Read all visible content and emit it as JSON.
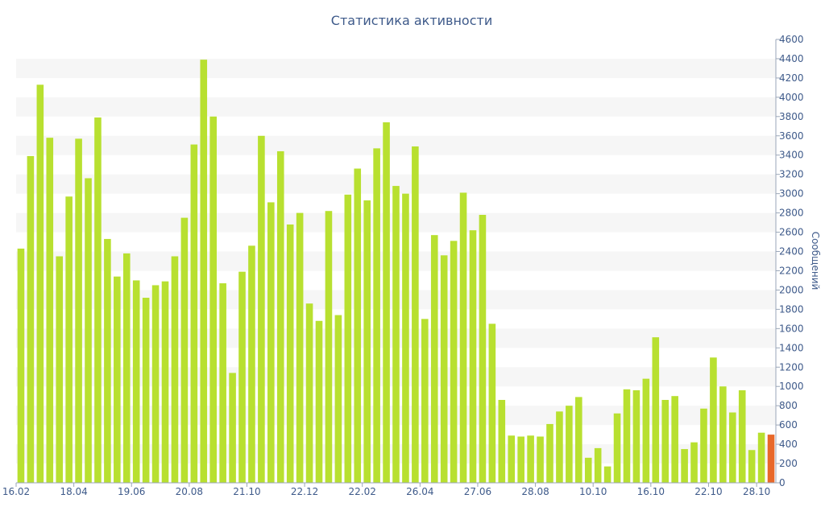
{
  "chart_data": {
    "type": "bar",
    "title": "Статистика активности",
    "ylabel": "Сообщений",
    "ylim": [
      0,
      4600
    ],
    "y_ticks": [
      0,
      200,
      400,
      600,
      800,
      1000,
      1200,
      1400,
      1600,
      1800,
      2000,
      2200,
      2400,
      2600,
      2800,
      3000,
      3200,
      3400,
      3600,
      3800,
      4000,
      4200,
      4400,
      4600
    ],
    "x_tick_labels": [
      {
        "index": 0,
        "label": "16.02"
      },
      {
        "index": 6,
        "label": "18.04"
      },
      {
        "index": 12,
        "label": "19.06"
      },
      {
        "index": 18,
        "label": "20.08"
      },
      {
        "index": 24,
        "label": "21.10"
      },
      {
        "index": 30,
        "label": "22.12"
      },
      {
        "index": 36,
        "label": "22.02"
      },
      {
        "index": 42,
        "label": "26.04"
      },
      {
        "index": 48,
        "label": "27.06"
      },
      {
        "index": 54,
        "label": "28.08"
      },
      {
        "index": 60,
        "label": "10.10"
      },
      {
        "index": 66,
        "label": "16.10"
      },
      {
        "index": 72,
        "label": "22.10"
      },
      {
        "index": 77,
        "label": "28.10"
      }
    ],
    "values": [
      2430,
      3390,
      4130,
      3580,
      2350,
      2970,
      3570,
      3160,
      3790,
      2530,
      2140,
      2380,
      2100,
      1920,
      2050,
      2090,
      2350,
      2750,
      3510,
      4390,
      3800,
      2070,
      1140,
      2190,
      2460,
      3600,
      2910,
      3440,
      2680,
      2800,
      1860,
      1680,
      2820,
      1740,
      2990,
      3260,
      2930,
      3470,
      3740,
      3080,
      3000,
      3490,
      1700,
      2570,
      2360,
      2510,
      3010,
      2620,
      2780,
      1650,
      860,
      490,
      480,
      490,
      480,
      610,
      740,
      800,
      890,
      260,
      360,
      170,
      720,
      970,
      960,
      1080,
      1510,
      860,
      900,
      350,
      420,
      770,
      1300,
      1000,
      730,
      960,
      340,
      520,
      500
    ],
    "highlight_index": 78,
    "colors": {
      "bar": "#b8e030",
      "highlight": "#e8682a",
      "text": "#3e5a8a",
      "stripe": "#f6f6f6"
    },
    "grid": "alternating horizontal bands",
    "y_axis_position": "right"
  }
}
